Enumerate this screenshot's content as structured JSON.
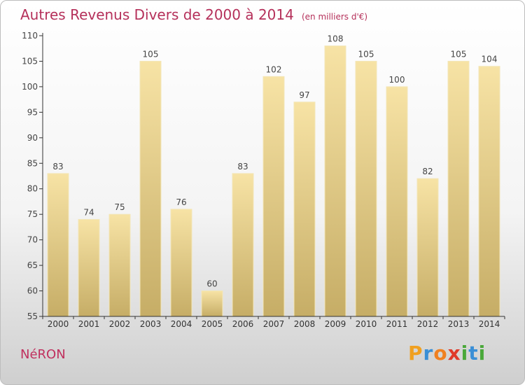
{
  "chart_data": {
    "type": "bar",
    "title": "Autres Revenus Divers de 2000 à 2014",
    "unit_label": "(en milliers d'€)",
    "categories": [
      "2000",
      "2001",
      "2002",
      "2003",
      "2004",
      "2005",
      "2006",
      "2007",
      "2008",
      "2009",
      "2010",
      "2011",
      "2012",
      "2013",
      "2014"
    ],
    "values": [
      83,
      74,
      75,
      105,
      76,
      60,
      83,
      102,
      97,
      108,
      105,
      100,
      82,
      105,
      104
    ],
    "ylim": [
      55,
      110
    ],
    "yticks": [
      55,
      60,
      65,
      70,
      75,
      80,
      85,
      90,
      95,
      100,
      105,
      110
    ],
    "grid": false,
    "bar_color": "#e8cf87"
  },
  "location": "NéRON",
  "brand": {
    "letters": [
      "P",
      "r",
      "o",
      "x",
      "i",
      "t",
      "i"
    ],
    "colors": [
      "#f0a020",
      "#3a8fd6",
      "#f08020",
      "#e03a2a",
      "#4aa83a",
      "#3a8fd6",
      "#4aa83a"
    ]
  }
}
